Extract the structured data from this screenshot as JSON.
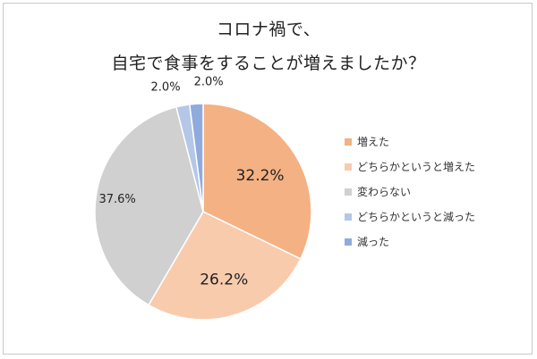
{
  "chart_data": {
    "type": "pie",
    "title_lines": [
      "コロナ禍で、",
      "自宅で食事をすることが増えましたか？"
    ],
    "slices": [
      {
        "label": "増えた",
        "value": 32.2,
        "display": "32.2%",
        "color": "#f4b183"
      },
      {
        "label": "どちらかというと増えた",
        "value": 26.2,
        "display": "26.2%",
        "color": "#f8cbad"
      },
      {
        "label": "変わらない",
        "value": 37.6,
        "display": "37.6%",
        "color": "#d0d0d0"
      },
      {
        "label": "どちらかというと減った",
        "value": 2.0,
        "display": "2.0%",
        "color": "#b4c7e7"
      },
      {
        "label": "減った",
        "value": 2.0,
        "display": "2.0%",
        "color": "#8faadc"
      }
    ],
    "legend_position": "right",
    "start_angle": "12 o'clock",
    "direction": "clockwise"
  }
}
